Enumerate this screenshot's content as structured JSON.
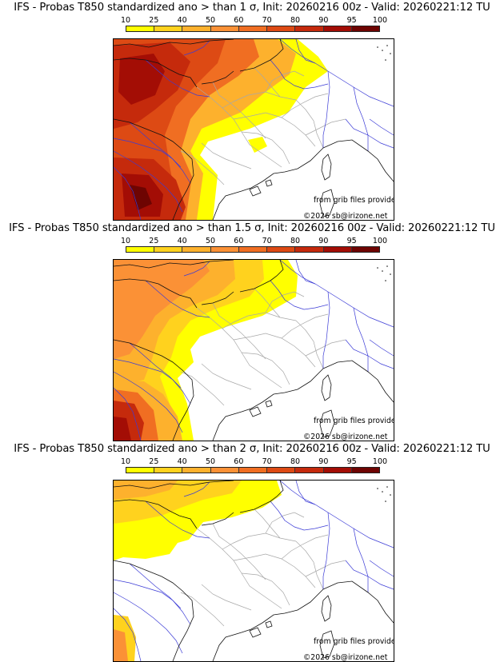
{
  "legend": {
    "labels": [
      "10",
      "25",
      "40",
      "50",
      "60",
      "70",
      "80",
      "90",
      "95",
      "100"
    ],
    "colors": [
      "#ffff00",
      "#ffd21e",
      "#fdb12d",
      "#fb9136",
      "#f06e22",
      "#dd4a14",
      "#c52a0c",
      "#a30d05",
      "#6e0402"
    ]
  },
  "panels": [
    {
      "title": "IFS - Probas T850  standardized ano > than 1 σ, Init: 20260216 00z - Valid: 20260221:12 TU",
      "source_credit": "from grib files provided by ECMWF",
      "copyright": "©2026 sb@irizone.net",
      "intensity": "high"
    },
    {
      "title": "IFS - Probas T850  standardized ano > than 1.5 σ, Init: 20260216 00z - Valid: 20260221:12 TU",
      "source_credit": "from grib files provided by ECMWF",
      "copyright": "©2026 sb@irizone.net",
      "intensity": "medium"
    },
    {
      "title": "IFS - Probas T850  standardized ano > than 2 σ, Init: 20260216 00z - Valid: 20260221:12 TU",
      "source_credit": "from grib files provided by ECMWF",
      "copyright": "©2026 sb@irizone.net",
      "intensity": "low"
    }
  ]
}
